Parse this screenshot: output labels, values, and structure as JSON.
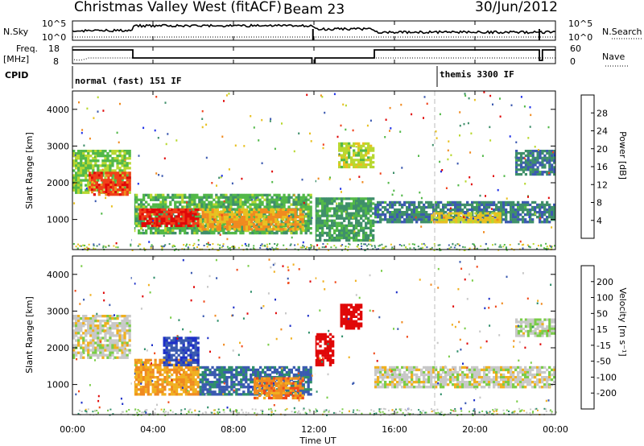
{
  "header": {
    "station": "Christmas Valley West (fitACF)",
    "beam": "Beam 23",
    "date": "30/Jun/2012"
  },
  "top_panels": {
    "nsky_label": "N.Sky",
    "nsky_axis": [
      "10^5",
      "10^0"
    ],
    "nsearch_label": "N.Search",
    "nsearch_axis": [
      "10^5",
      "10^0"
    ],
    "freq_label_1": "Freq.",
    "freq_label_2": "[MHz]",
    "freq_axis": [
      "18",
      "8"
    ],
    "nave_label": "Nave",
    "nave_axis": [
      "60",
      "0"
    ],
    "cpid_label": "CPID",
    "modes": [
      "normal (fast) 151 IF",
      "themis 3300 IF"
    ]
  },
  "x_axis": {
    "ticks": [
      "00:00",
      "04:00",
      "08:00",
      "12:00",
      "16:00",
      "20:00",
      "00:00"
    ],
    "label": "Time UT"
  },
  "power_panel": {
    "ylabel": "Slant Range [km]",
    "yticks": [
      "4000",
      "3000",
      "2000",
      "1000"
    ],
    "colorbar_label": "Power [dB]",
    "colorbar_ticks": [
      "28",
      "24",
      "20",
      "16",
      "12",
      "8",
      "4"
    ],
    "colors": [
      "#1e30e8",
      "#3c5ab0",
      "#3f8f6a",
      "#52b848",
      "#b8d830",
      "#e8c020",
      "#f08a20",
      "#f0401a",
      "#e00808"
    ]
  },
  "velocity_panel": {
    "ylabel": "Slant Range [km]",
    "yticks": [
      "4000",
      "3000",
      "2000",
      "1000"
    ],
    "colorbar_label": "Velocity [m s⁻¹]",
    "colorbar_ticks": [
      "200",
      "100",
      "50",
      "15",
      "-15",
      "-50",
      "-100",
      "-200"
    ],
    "colors": [
      "#1e30c8",
      "#3a5ab0",
      "#2f8f6a",
      "#7acd48",
      "#c8c8c8",
      "#f0b020",
      "#f08a20",
      "#f04a1a",
      "#e00808"
    ]
  },
  "chart_data": [
    {
      "type": "heatmap",
      "title": "Power [dB]",
      "xlabel": "Time UT",
      "ylabel": "Slant Range [km]",
      "xlim": [
        0,
        24
      ],
      "ylim": [
        180,
        4500
      ],
      "clim": [
        0,
        32
      ],
      "regions": [
        {
          "t0": 0.0,
          "t1": 2.9,
          "r0": 1700,
          "r1": 2900,
          "value": 14
        },
        {
          "t0": 0.8,
          "t1": 2.9,
          "r0": 1650,
          "r1": 2300,
          "value": 27
        },
        {
          "t0": 3.0,
          "t1": 11.9,
          "r0": 600,
          "r1": 1700,
          "value": 12
        },
        {
          "t0": 3.3,
          "t1": 6.3,
          "r0": 800,
          "r1": 1300,
          "value": 29
        },
        {
          "t0": 6.3,
          "t1": 11.5,
          "r0": 700,
          "r1": 1300,
          "value": 22
        },
        {
          "t0": 12.0,
          "t1": 15.0,
          "r0": 400,
          "r1": 1600,
          "value": 10
        },
        {
          "t0": 13.2,
          "t1": 15.0,
          "r0": 2400,
          "r1": 3100,
          "value": 16
        },
        {
          "t0": 15.0,
          "t1": 24.0,
          "r0": 900,
          "r1": 1500,
          "value": 8
        },
        {
          "t0": 17.8,
          "t1": 21.3,
          "r0": 900,
          "r1": 1200,
          "value": 19
        },
        {
          "t0": 22.0,
          "t1": 24.0,
          "r0": 2200,
          "r1": 2900,
          "value": 8
        }
      ]
    },
    {
      "type": "heatmap",
      "title": "Velocity [m s⁻¹]",
      "xlabel": "Time UT",
      "ylabel": "Slant Range [km]",
      "xlim": [
        0,
        24
      ],
      "ylim": [
        180,
        4500
      ],
      "clim": [
        -200,
        200
      ],
      "regions": [
        {
          "t0": 0.0,
          "t1": 2.9,
          "r0": 1700,
          "r1": 2900,
          "value": 0
        },
        {
          "t0": 3.0,
          "t1": 6.3,
          "r0": 700,
          "r1": 1700,
          "value": -60
        },
        {
          "t0": 4.5,
          "t1": 6.3,
          "r0": 1500,
          "r1": 2300,
          "value": 150
        },
        {
          "t0": 6.3,
          "t1": 11.9,
          "r0": 700,
          "r1": 1500,
          "value": 120
        },
        {
          "t0": 9.0,
          "t1": 11.5,
          "r0": 600,
          "r1": 1200,
          "value": -90
        },
        {
          "t0": 12.0,
          "t1": 13.0,
          "r0": 1500,
          "r1": 2400,
          "value": -220
        },
        {
          "t0": 13.3,
          "t1": 14.4,
          "r0": 2500,
          "r1": 3200,
          "value": -210
        },
        {
          "t0": 15.0,
          "t1": 24.0,
          "r0": 900,
          "r1": 1500,
          "value": 0
        },
        {
          "t0": 22.0,
          "t1": 24.0,
          "r0": 2300,
          "r1": 2800,
          "value": 10
        }
      ]
    }
  ]
}
